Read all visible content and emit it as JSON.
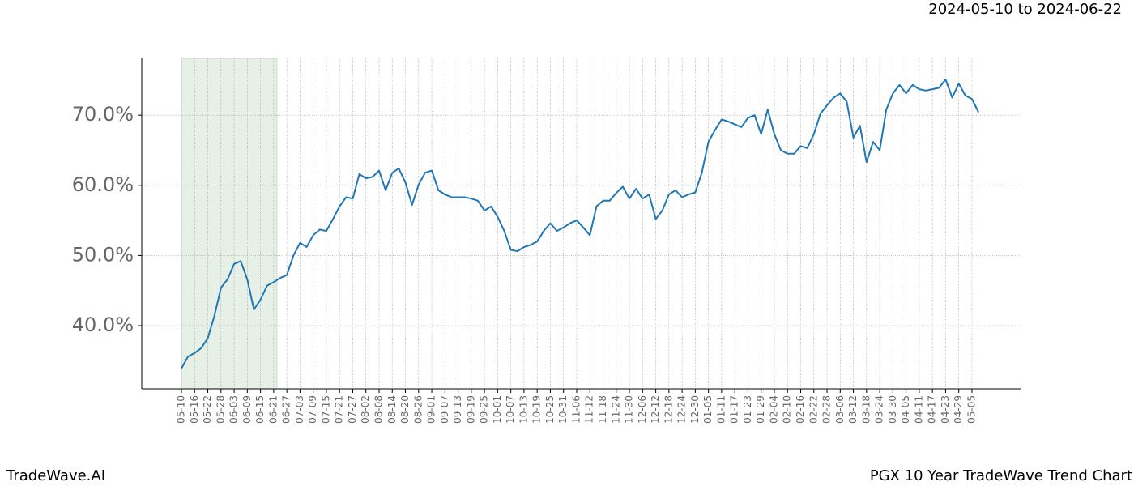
{
  "chart_data": {
    "type": "line",
    "title": "2024-05-10 to 2024-06-22",
    "footer_left": "TradeWave.AI",
    "footer_right": "PGX 10 Year TradeWave Trend Chart",
    "categories": [
      "05-10",
      null,
      "05-16",
      null,
      "05-22",
      null,
      "05-28",
      null,
      "06-03",
      null,
      "06-09",
      null,
      "06-15",
      null,
      "06-21",
      null,
      "06-27",
      null,
      "07-03",
      null,
      "07-09",
      null,
      "07-15",
      null,
      "07-21",
      null,
      "07-27",
      null,
      "08-02",
      null,
      "08-08",
      null,
      "08-14",
      null,
      "08-20",
      null,
      "08-26",
      null,
      "09-01",
      null,
      "09-07",
      null,
      "09-13",
      null,
      "09-19",
      null,
      "09-25",
      null,
      "10-01",
      null,
      "10-07",
      null,
      "10-13",
      null,
      "10-19",
      null,
      "10-25",
      null,
      "10-31",
      null,
      "11-06",
      null,
      "11-12",
      null,
      "11-18",
      null,
      "11-24",
      null,
      "11-30",
      null,
      "12-06",
      null,
      "12-12",
      null,
      "12-18",
      null,
      "12-24",
      null,
      "12-30",
      null,
      "01-05",
      null,
      "01-11",
      null,
      "01-17",
      null,
      "01-23",
      null,
      "01-29",
      null,
      "02-04",
      null,
      "02-10",
      null,
      "02-16",
      null,
      "02-22",
      null,
      "02-28",
      null,
      "03-06",
      null,
      "03-12",
      null,
      "03-18",
      null,
      "03-24",
      null,
      "03-30",
      null,
      "04-05",
      null,
      "04-11",
      null,
      "04-17",
      null,
      "04-23",
      null,
      "04-29",
      null,
      "05-05",
      null
    ],
    "series": [
      {
        "color": "#1f77b4",
        "values": [
          33.9,
          35.6,
          36.1,
          36.8,
          38.2,
          41.4,
          45.4,
          46.6,
          48.8,
          49.2,
          46.6,
          42.3,
          43.7,
          45.7,
          46.2,
          46.8,
          47.2,
          50.0,
          51.8,
          51.2,
          52.9,
          53.7,
          53.5,
          55.2,
          57.0,
          58.3,
          58.1,
          61.6,
          61.0,
          61.2,
          62.1,
          59.3,
          61.8,
          62.4,
          60.4,
          57.2,
          60.1,
          61.8,
          62.1,
          59.3,
          58.7,
          58.3,
          58.3,
          58.3,
          58.1,
          57.8,
          56.4,
          57.0,
          55.5,
          53.5,
          50.8,
          50.6,
          51.2,
          51.5,
          52.0,
          53.5,
          54.6,
          53.5,
          54.0,
          54.6,
          55.0,
          54.0,
          52.9,
          57.0,
          57.8,
          57.8,
          58.9,
          59.8,
          58.1,
          59.5,
          58.1,
          58.7,
          55.2,
          56.4,
          58.7,
          59.3,
          58.3,
          58.7,
          59.0,
          61.8,
          66.2,
          67.9,
          69.4,
          69.1,
          68.7,
          68.3,
          69.6,
          70.0,
          67.3,
          70.8,
          67.3,
          65.0,
          64.5,
          64.5,
          65.6,
          65.3,
          67.3,
          70.2,
          71.4,
          72.5,
          73.1,
          71.9,
          66.8,
          68.5,
          63.3,
          66.2,
          65.0,
          70.8,
          73.1,
          74.3,
          73.1,
          74.3,
          73.7,
          73.5,
          73.7,
          73.9,
          75.1,
          72.5,
          74.5,
          72.8,
          72.3,
          70.4
        ]
      }
    ],
    "ylim": [
      31,
      78.1
    ],
    "yticks": [
      {
        "value": 40,
        "label": "40.0%"
      },
      {
        "value": 50,
        "label": "50.0%"
      },
      {
        "value": 60,
        "label": "60.0%"
      },
      {
        "value": 70,
        "label": "70.0%"
      }
    ],
    "grid": true,
    "highlight_color": "#e6f0e6"
  }
}
